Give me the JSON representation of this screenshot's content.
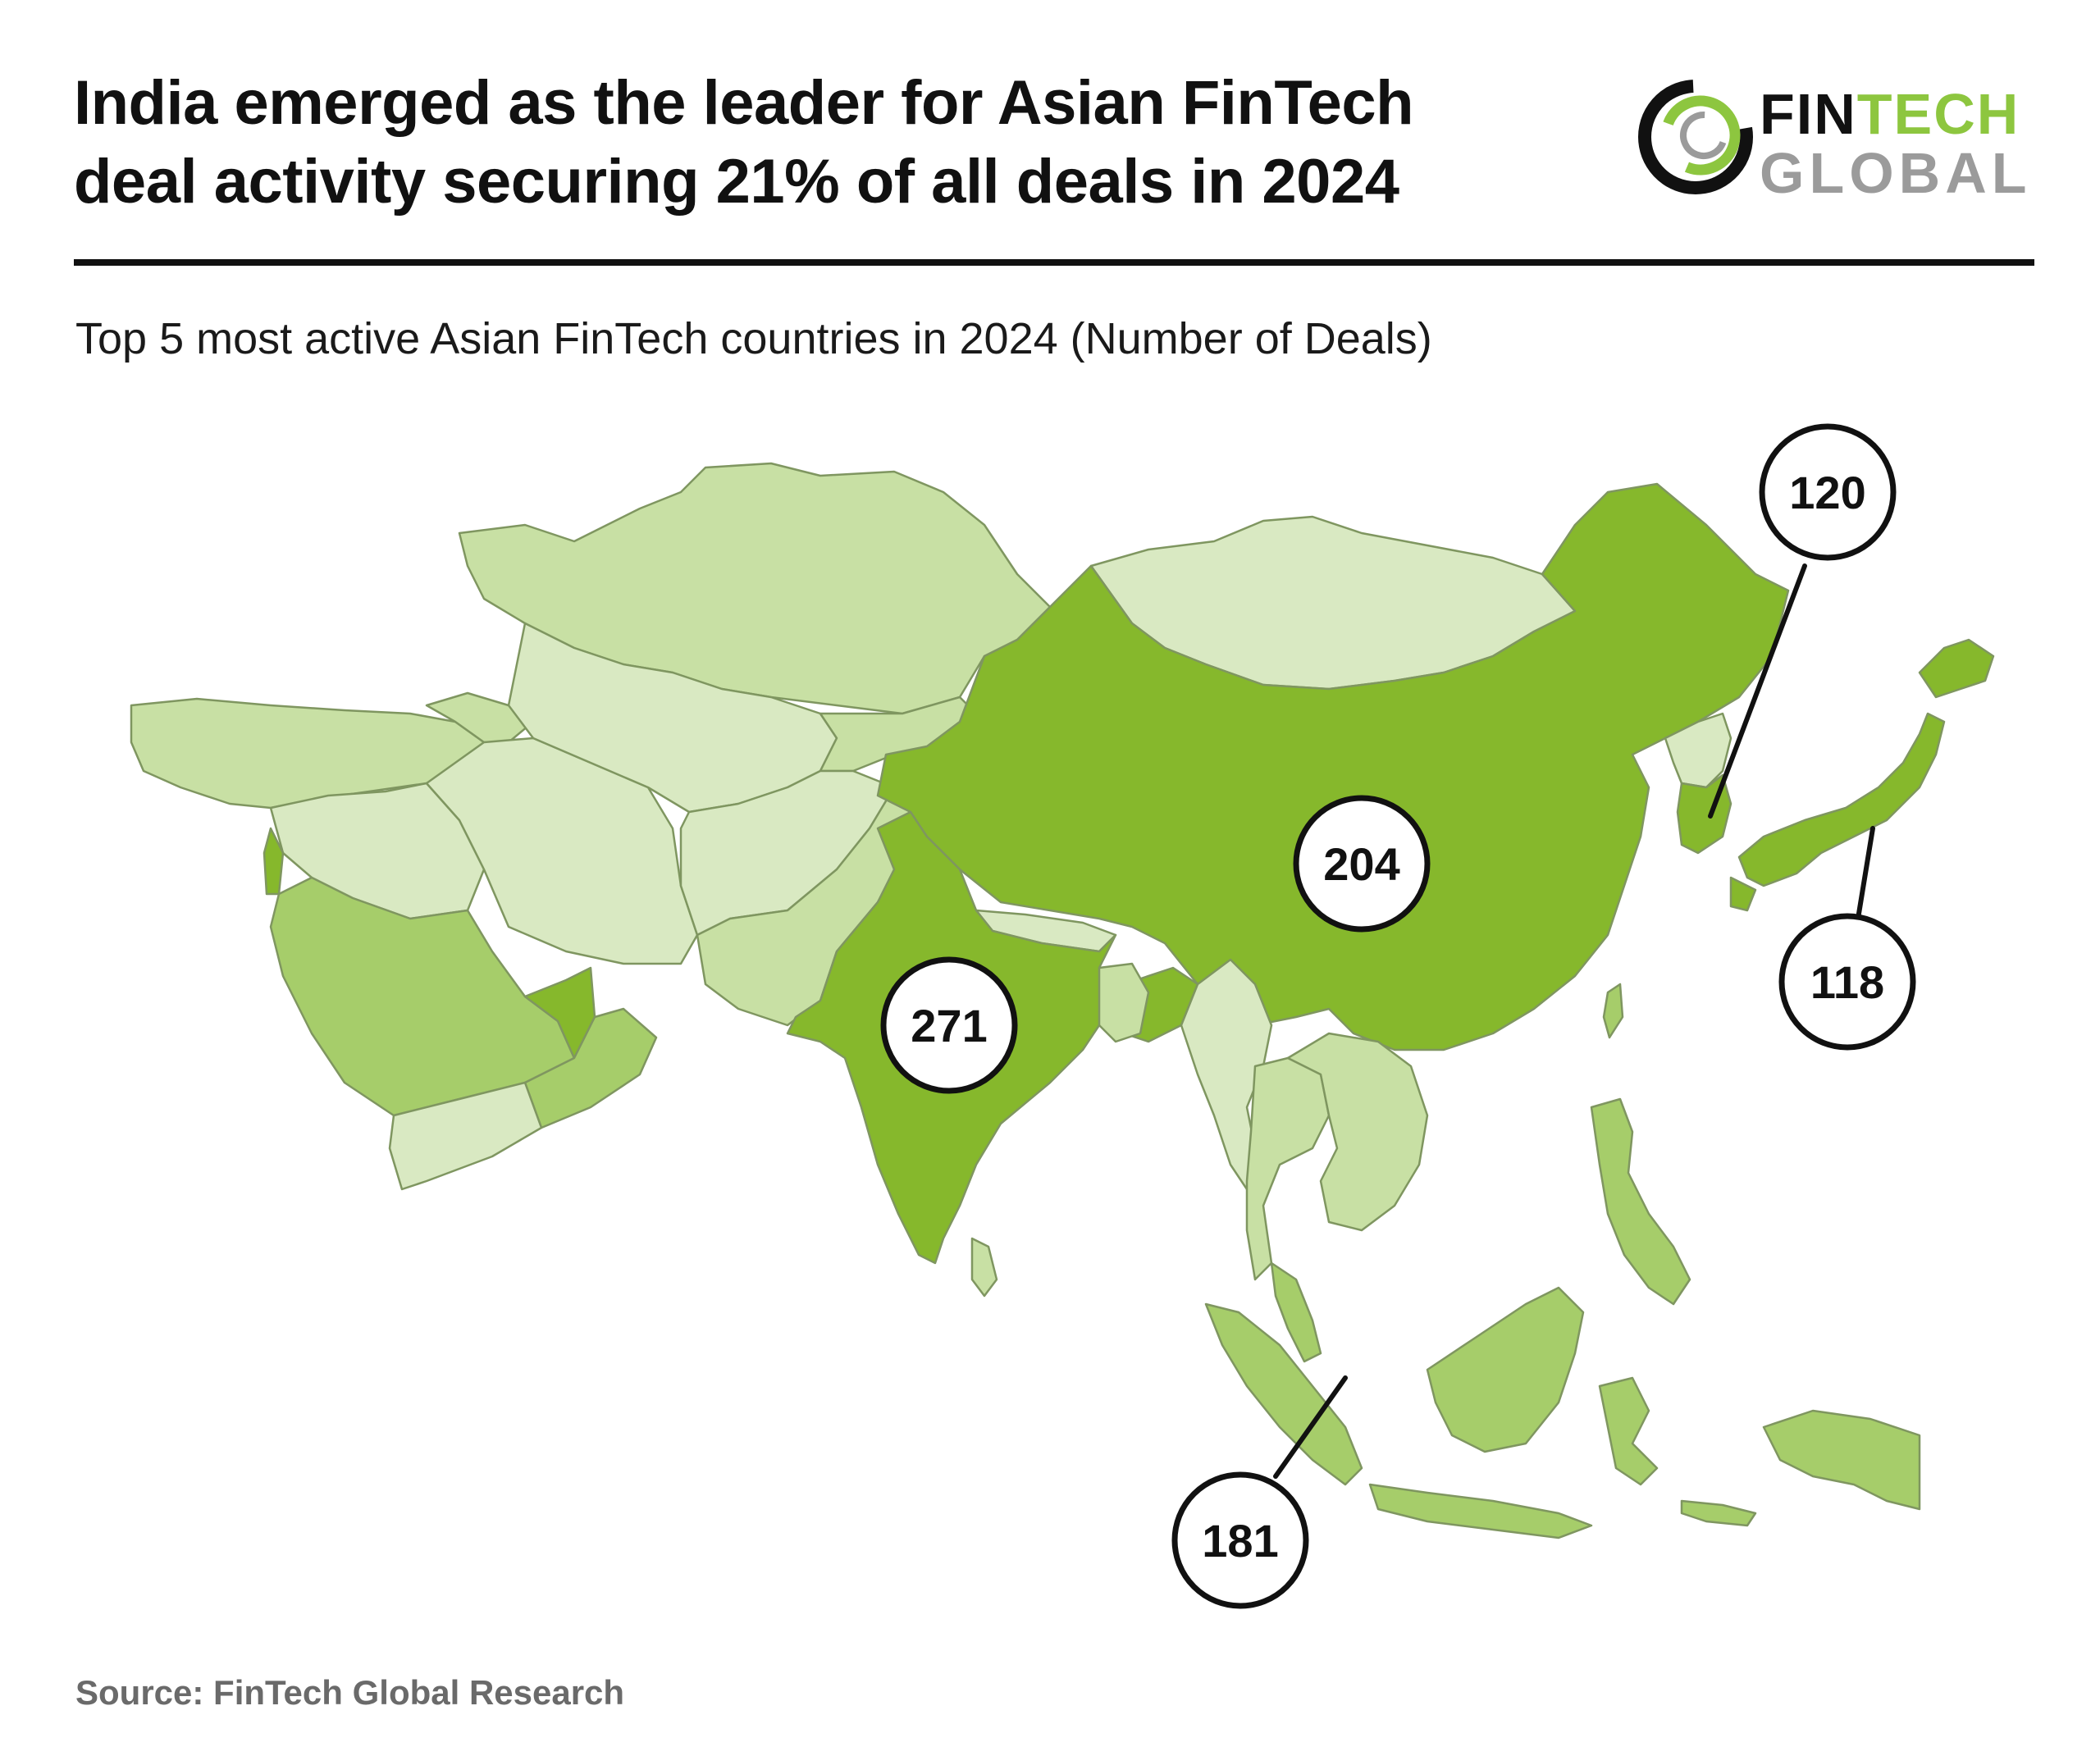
{
  "header": {
    "title_line1": "India emerged as the leader for Asian FinTech",
    "title_line2": "deal activity securing 21% of all deals in 2024",
    "subtitle": "Top 5 most active Asian FinTech countries in 2024 (Number of Deals)"
  },
  "logo": {
    "word1_part1": "FIN",
    "word1_part2": "TECH",
    "word2": "GLOBAL"
  },
  "map_data": {
    "countries": [
      {
        "name": "India",
        "deals": 271
      },
      {
        "name": "China",
        "deals": 204
      },
      {
        "name": "Indonesia",
        "deals": 181
      },
      {
        "name": "South Korea",
        "deals": 120
      },
      {
        "name": "Japan",
        "deals": 118
      }
    ]
  },
  "colors": {
    "top5": "#86b82c",
    "mid": "#a6cd6a",
    "light": "#c8e0a4",
    "lightest": "#d9e9c2",
    "border": "#7f9660",
    "logo_green": "#8dc63f",
    "logo_gray": "#9b9b9b"
  },
  "footer": {
    "source": "Source: FinTech Global Research"
  }
}
